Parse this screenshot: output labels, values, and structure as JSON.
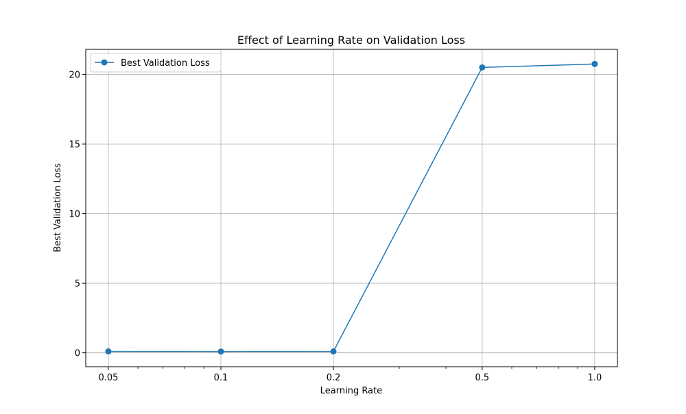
{
  "chart_data": {
    "type": "line",
    "title": "Effect of Learning Rate on Validation Loss",
    "xlabel": "Learning Rate",
    "ylabel": "Best Validation Loss",
    "xscale": "log",
    "xlim": [
      0.0435,
      1.15
    ],
    "ylim": [
      -1.0,
      21.8
    ],
    "xticks": [
      0.05,
      0.1,
      0.2,
      0.5,
      1.0
    ],
    "xtick_labels": [
      "0.05",
      "0.1",
      "0.2",
      "0.5",
      "1.0"
    ],
    "yticks": [
      0,
      5,
      10,
      15,
      20
    ],
    "ytick_labels": [
      "0",
      "5",
      "10",
      "15",
      "20"
    ],
    "grid": true,
    "legend_position": "upper-left",
    "series": [
      {
        "name": "Best Validation Loss",
        "color": "#1f77b4",
        "marker": "circle",
        "x": [
          0.05,
          0.1,
          0.2,
          0.5,
          1.0
        ],
        "y": [
          0.1,
          0.09,
          0.1,
          20.5,
          20.75
        ]
      }
    ]
  }
}
